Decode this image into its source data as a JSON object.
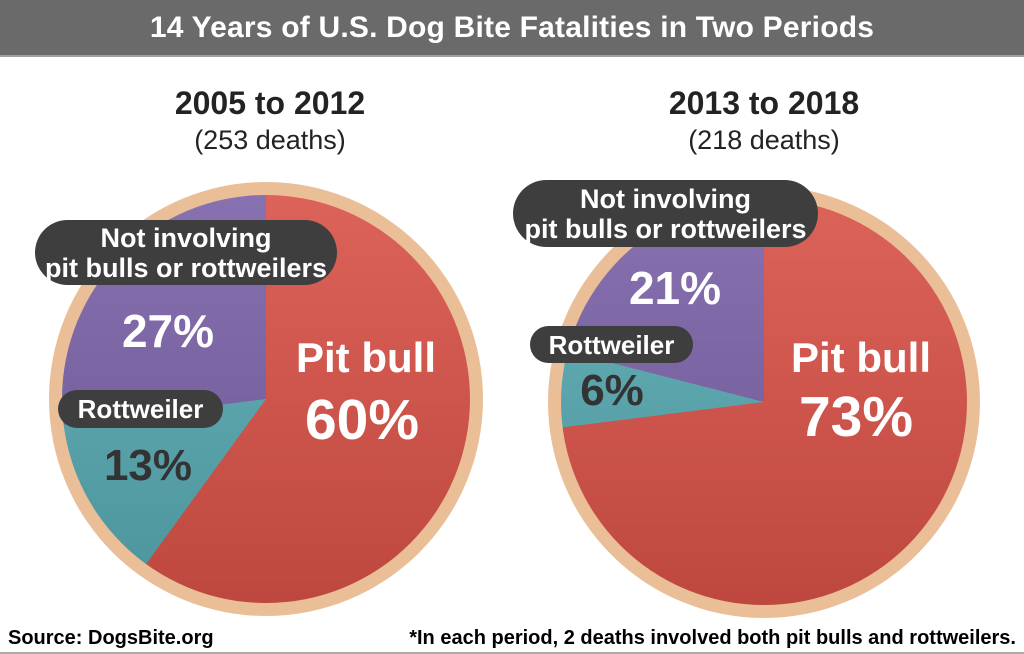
{
  "colors": {
    "header_bg": "#6a6a6a",
    "ring": "#eabf98",
    "callout_bg": "#3e3e3e",
    "pit_bull_red": "#d85147",
    "rottweiler_teal": "#57a9b2",
    "other_purple": "#7a61a7",
    "dark_label_text": "#333333"
  },
  "header": {
    "title": "14 Years of U.S. Dog Bite Fatalities in Two Periods"
  },
  "chart_data": [
    {
      "type": "pie",
      "title": "2005 to 2012",
      "subtitle": "(253 deaths)",
      "start_angle_deg": 0,
      "direction": "clockwise",
      "slices": [
        {
          "name": "Pit bull",
          "value_pct": 60,
          "display": "60%",
          "color": "#d85147"
        },
        {
          "name": "Rottweiler",
          "value_pct": 13,
          "display": "13%",
          "color": "#57a9b2"
        },
        {
          "name": "Not involving pit bulls or rottweilers",
          "value_pct": 27,
          "display": "27%",
          "color": "#7a61a7"
        }
      ],
      "callout_other": [
        "Not involving",
        "pit bulls or rottweilers"
      ],
      "callout_rottweiler": "Rottweiler"
    },
    {
      "type": "pie",
      "title": "2013 to 2018",
      "subtitle": "(218 deaths)",
      "start_angle_deg": 0,
      "direction": "clockwise",
      "slices": [
        {
          "name": "Pit bull",
          "value_pct": 73,
          "display": "73%",
          "color": "#d85147"
        },
        {
          "name": "Rottweiler",
          "value_pct": 6,
          "display": "6%",
          "color": "#57a9b2"
        },
        {
          "name": "Not involving pit bulls or rottweilers",
          "value_pct": 21,
          "display": "21%",
          "color": "#7a61a7"
        }
      ],
      "callout_other": [
        "Not involving",
        "pit bulls or rottweilers"
      ],
      "callout_rottweiler": "Rottweiler"
    }
  ],
  "footer": {
    "source": "Source: DogsBite.org",
    "footnote": "*In each period, 2 deaths involved both pit bulls and rottweilers."
  }
}
